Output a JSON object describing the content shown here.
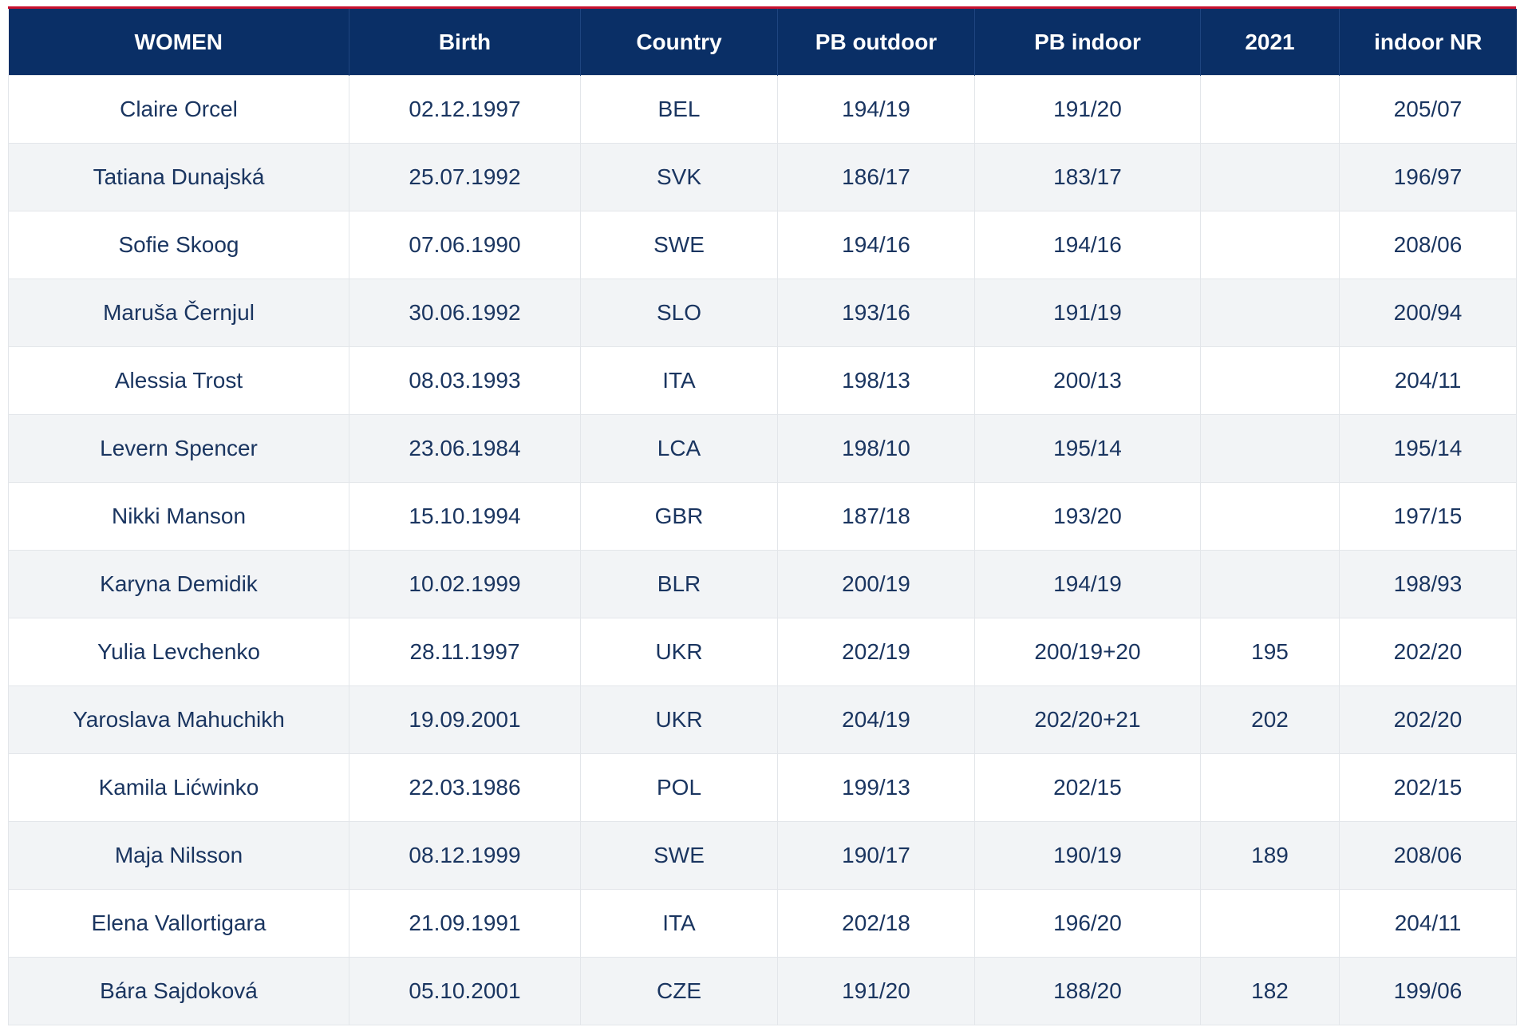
{
  "table": {
    "headers": [
      "WOMEN",
      "Birth",
      "Country",
      "PB outdoor",
      "PB indoor",
      "2021",
      "indoor NR"
    ],
    "rows": [
      [
        "Claire Orcel",
        "02.12.1997",
        "BEL",
        "194/19",
        "191/20",
        "",
        "205/07"
      ],
      [
        "Tatiana Dunajská",
        "25.07.1992",
        "SVK",
        "186/17",
        "183/17",
        "",
        "196/97"
      ],
      [
        "Sofie Skoog",
        "07.06.1990",
        "SWE",
        "194/16",
        "194/16",
        "",
        "208/06"
      ],
      [
        "Maruša Černjul",
        "30.06.1992",
        "SLO",
        "193/16",
        "191/19",
        "",
        "200/94"
      ],
      [
        "Alessia Trost",
        "08.03.1993",
        "ITA",
        "198/13",
        "200/13",
        "",
        "204/11"
      ],
      [
        "Levern Spencer",
        "23.06.1984",
        "LCA",
        "198/10",
        "195/14",
        "",
        "195/14"
      ],
      [
        "Nikki Manson",
        "15.10.1994",
        "GBR",
        "187/18",
        "193/20",
        "",
        "197/15"
      ],
      [
        "Karyna Demidik",
        "10.02.1999",
        "BLR",
        "200/19",
        "194/19",
        "",
        "198/93"
      ],
      [
        "Yulia Levchenko",
        "28.11.1997",
        "UKR",
        "202/19",
        "200/19+20",
        "195",
        "202/20"
      ],
      [
        "Yaroslava Mahuchikh",
        "19.09.2001",
        "UKR",
        "204/19",
        "202/20+21",
        "202",
        "202/20"
      ],
      [
        "Kamila Lićwinko",
        "22.03.1986",
        "POL",
        "199/13",
        "202/15",
        "",
        "202/15"
      ],
      [
        "Maja Nilsson",
        "08.12.1999",
        "SWE",
        "190/17",
        "190/19",
        "189",
        "208/06"
      ],
      [
        "Elena Vallortigara",
        "21.09.1991",
        "ITA",
        "202/18",
        "196/20",
        "",
        "204/11"
      ],
      [
        "Bára Sajdoková",
        "05.10.2001",
        "CZE",
        "191/20",
        "188/20",
        "182",
        "199/06"
      ]
    ]
  },
  "colors": {
    "header_bg": "#0a2f66",
    "header_text": "#ffffff",
    "accent_line": "#c8102e",
    "row_alt_bg": "#f2f4f6",
    "cell_text": "#1a3560"
  }
}
